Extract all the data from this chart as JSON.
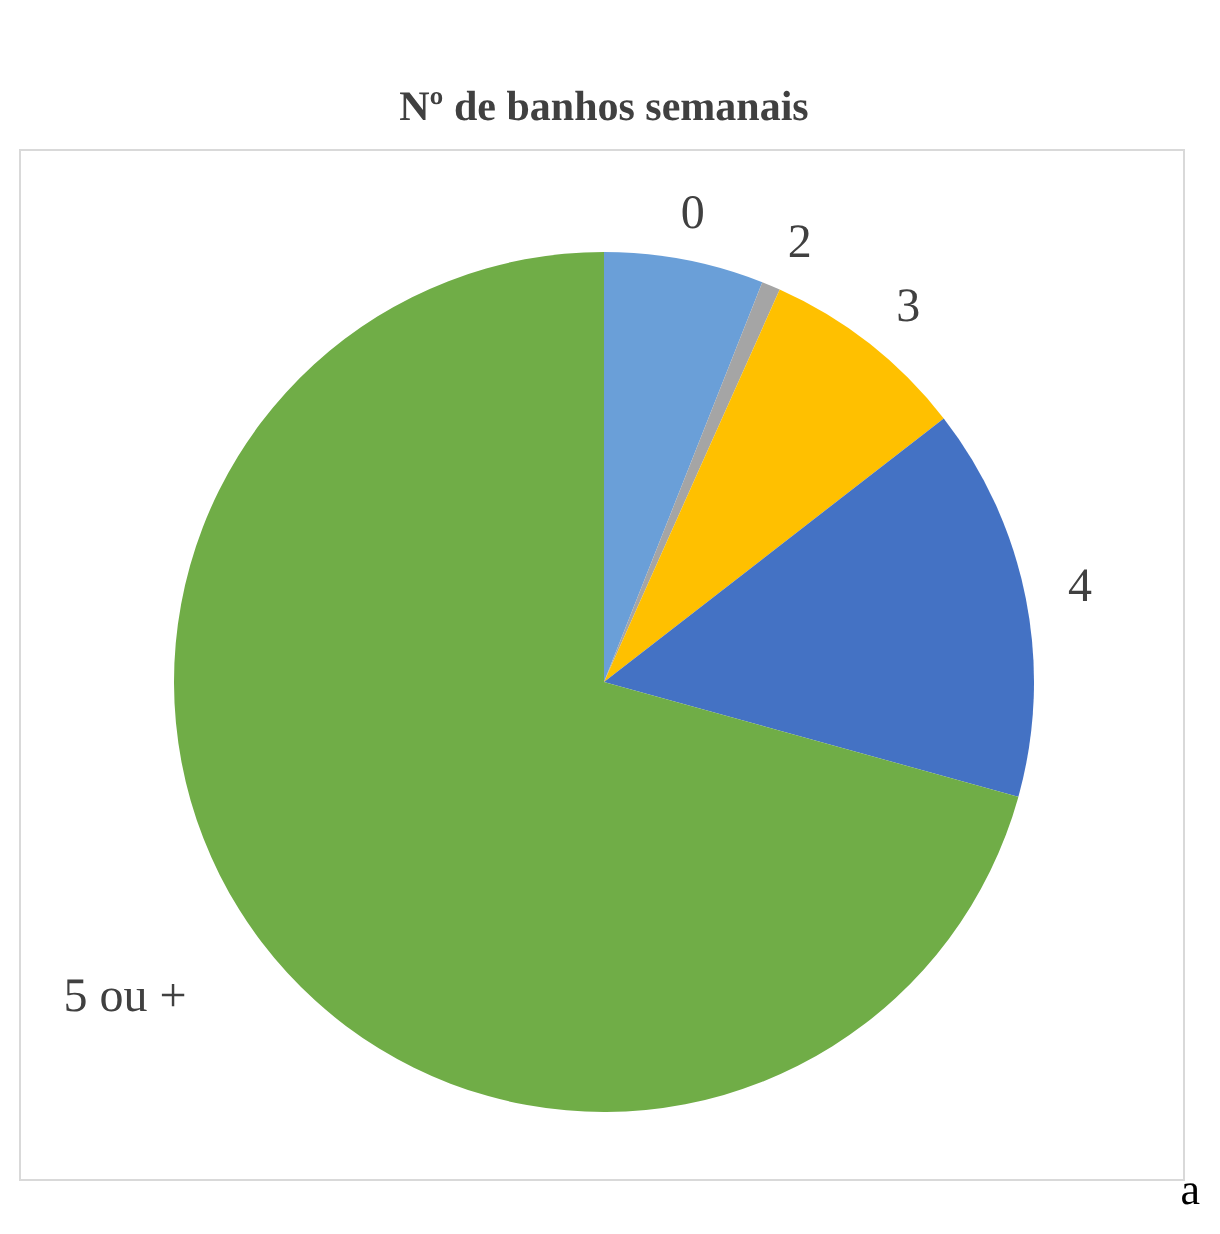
{
  "chart_data": {
    "type": "pie",
    "title": "Nº de banhos semanais",
    "categories": [
      "0",
      "2",
      "3",
      "4",
      "5 ou +"
    ],
    "values": [
      6,
      0.7,
      7.8,
      14.8,
      70.7
    ],
    "colors": [
      "#6a9fd8",
      "#a5a5a5",
      "#ffc000",
      "#4472c4",
      "#70ad47"
    ],
    "annotations": [
      "a"
    ]
  }
}
